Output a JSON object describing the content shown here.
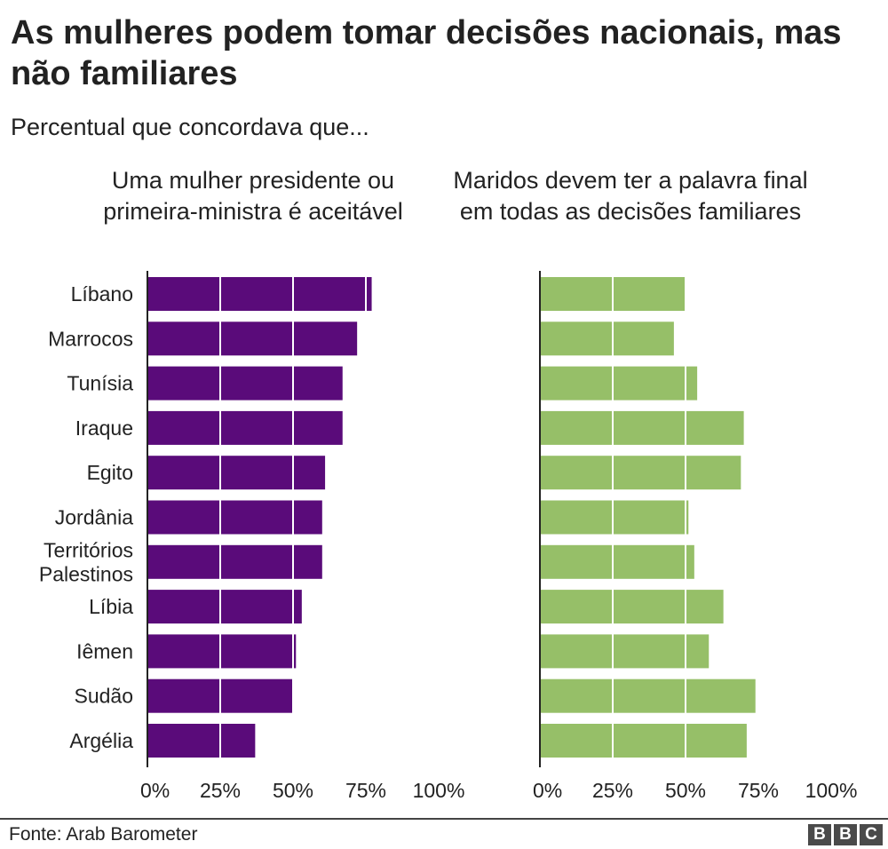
{
  "title": "As mulheres podem tomar decisões nacionais, mas não familiares",
  "subtitle": "Percentual que concordava que...",
  "source": "Fonte: Arab Barometer",
  "logo": [
    "B",
    "B",
    "C"
  ],
  "chart_data": {
    "type": "bar",
    "orientation": "horizontal",
    "categories": [
      "Líbano",
      "Marrocos",
      "Tunísia",
      "Iraque",
      "Egito",
      "Jordânia",
      "Territórios\nPalestinos",
      "Líbia",
      "Iêmen",
      "Sudão",
      "Argélia"
    ],
    "xlim": [
      0,
      100
    ],
    "ticks": [
      "0%",
      "25%",
      "50%",
      "75%",
      "100%"
    ],
    "tick_values": [
      0,
      25,
      50,
      75,
      100
    ],
    "panels": [
      {
        "title": "Uma mulher presidente ou primeira-ministra é aceitável",
        "color": "#5a0b7a",
        "values": [
          77,
          72,
          67,
          67,
          61,
          60,
          60,
          53,
          51,
          50,
          37
        ]
      },
      {
        "title": "Maridos devem ter a palavra final em todas as decisões familiares",
        "color": "#96bf68",
        "values": [
          50,
          46,
          54,
          70,
          69,
          51,
          53,
          63,
          58,
          74,
          71
        ]
      }
    ]
  }
}
